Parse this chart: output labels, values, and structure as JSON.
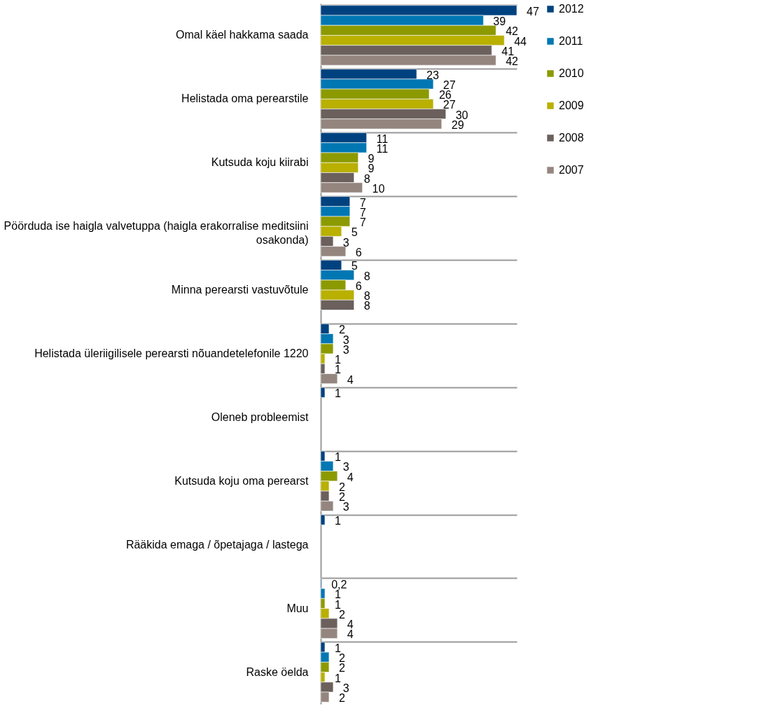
{
  "chart_data": {
    "type": "bar",
    "orientation": "horizontal",
    "legend": "top right",
    "grid": "y",
    "tick_labels": "y",
    "categories": [
      "Omal käel hakkama saada",
      "Helistada oma perearstile",
      "Kutsuda koju kiirabi",
      "Pöörduda ise haigla valvetuppa (haigla erakorralise meditsiini osakonda)",
      "Minna perearsti vastuvõtule",
      "Helistada üleriigilisele perearsti nõuandetelefonile 1220",
      "Oleneb probleemist",
      "Kutsuda koju oma perearst",
      "Rääkida emaga / õpetajaga / lastega",
      "Muu",
      "Raske öelda"
    ],
    "series": [
      {
        "name": "2012",
        "color": "#00427f",
        "values": [
          47,
          23,
          11,
          7,
          5,
          2,
          1,
          1,
          1,
          0.2,
          1
        ],
        "value_labels": [
          "47",
          "23",
          "11",
          "7",
          "5",
          "2",
          "1",
          "1",
          "1",
          "0,2",
          "1"
        ]
      },
      {
        "name": "2011",
        "color": "#0077b3",
        "values": [
          39,
          27,
          11,
          7,
          8,
          3,
          null,
          3,
          null,
          1,
          2
        ],
        "value_labels": [
          "39",
          "27",
          "11",
          "7",
          "8",
          "3",
          null,
          "3",
          null,
          "1",
          "2"
        ]
      },
      {
        "name": "2010",
        "color": "#8c9a00",
        "values": [
          42,
          26,
          9,
          7,
          6,
          3,
          null,
          4,
          null,
          1,
          2
        ],
        "value_labels": [
          "42",
          "26",
          "9",
          "7",
          "6",
          "3",
          null,
          "4",
          null,
          "1",
          "2"
        ]
      },
      {
        "name": "2009",
        "color": "#b9b000",
        "values": [
          44,
          27,
          9,
          5,
          8,
          1,
          null,
          2,
          null,
          2,
          1
        ],
        "value_labels": [
          "44",
          "27",
          "9",
          "5",
          "8",
          "1",
          null,
          "2",
          null,
          "2",
          "1"
        ]
      },
      {
        "name": "2008",
        "color": "#6b605c",
        "values": [
          41,
          30,
          8,
          3,
          8,
          1,
          null,
          2,
          null,
          4,
          3
        ],
        "value_labels": [
          "41",
          "30",
          "8",
          "3",
          "8",
          "1",
          null,
          "2",
          null,
          "4",
          "3"
        ]
      },
      {
        "name": "2007",
        "color": "#94867f",
        "values": [
          42,
          29,
          10,
          6,
          null,
          4,
          null,
          3,
          null,
          4,
          2
        ],
        "value_labels": [
          "42",
          "29",
          "10",
          "6",
          null,
          "4",
          null,
          "3",
          null,
          "4",
          "2"
        ]
      }
    ]
  }
}
